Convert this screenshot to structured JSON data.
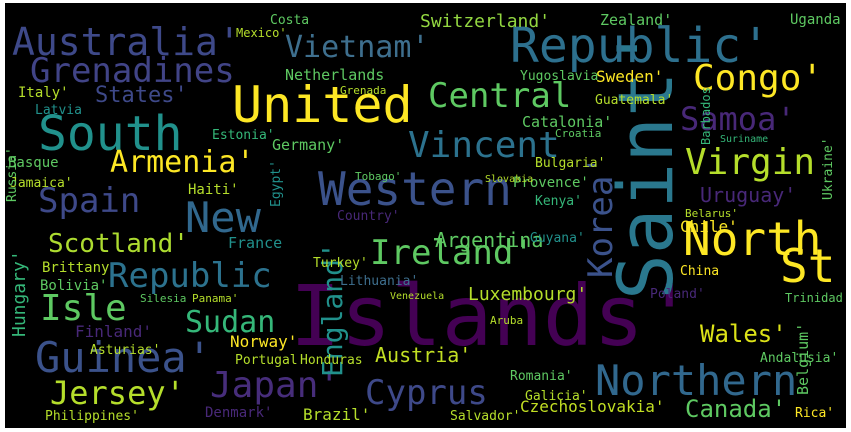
{
  "words": [
    "Islands'",
    "Saint'",
    "United",
    "Republic'",
    "Western",
    "South",
    "North",
    "Northern",
    "Guinea'",
    "New",
    "Australia'",
    "Grenadines",
    "Vietnam'",
    "Congo'",
    "Central",
    "Samoa'",
    "Virgin",
    "Vincent",
    "Armenia'",
    "Spain",
    "St",
    "Ireland'",
    "Korea'",
    "Scotland'",
    "Republic",
    "Isle",
    "Sudan",
    "Jersey'",
    "Japan'",
    "Cyprus",
    "England'",
    "Canada'",
    "Wales'",
    "Switzerland'",
    "States'",
    "Argentina",
    "Uruguay'",
    "Luxembourg'",
    "Austria'",
    "Norway'",
    "Germany'",
    "Chile'",
    "Belgium'",
    "Czechoslovakia'",
    "Brazil'",
    "Denmark'",
    "Philippines'",
    "Hungary'",
    "Finland'",
    "Bolivia'",
    "Brittany",
    "Italy'",
    "Latvia",
    "Basque",
    "Jamaica'",
    "France",
    "Haiti'",
    "Estonia'",
    "Catalonia'",
    "Bulgaria'",
    "Provence'",
    "Sweden'",
    "Guatemala'",
    "Netherlands",
    "Yugoslavia",
    "Zealand'",
    "Uganda",
    "Ukraine'",
    "Kenya'",
    "Guyana'",
    "Turkey'",
    "Lithuania'",
    "Poland'",
    "China",
    "Trinidad",
    "Honduras",
    "Portugal'",
    "Asturias'",
    "Romania'",
    "Galicia'",
    "Salvador'",
    "Rica'",
    "Andalusia'",
    "Mexico'",
    "Costa",
    "Russia'",
    "Egypt'",
    "Country'",
    "Grenada",
    "Croatia",
    "Tobago'",
    "Panama'",
    "Silesia",
    "Venezuela",
    "Aruba",
    "Slovakia",
    "Belarus'",
    "Suriname",
    "Barbados"
  ]
}
